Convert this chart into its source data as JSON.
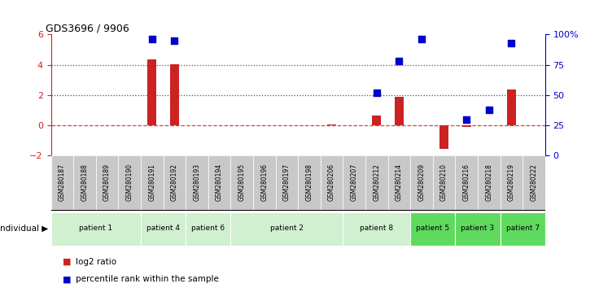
{
  "title": "GDS3696 / 9906",
  "samples": [
    "GSM280187",
    "GSM280188",
    "GSM280189",
    "GSM280190",
    "GSM280191",
    "GSM280192",
    "GSM280193",
    "GSM280194",
    "GSM280195",
    "GSM280196",
    "GSM280197",
    "GSM280198",
    "GSM280206",
    "GSM280207",
    "GSM280212",
    "GSM280214",
    "GSM280209",
    "GSM280210",
    "GSM280216",
    "GSM280218",
    "GSM280219",
    "GSM280222"
  ],
  "log2_ratio": [
    0,
    0,
    0,
    0,
    4.35,
    4.05,
    0,
    0,
    0,
    0,
    0,
    0,
    0.08,
    0,
    0.65,
    1.9,
    0,
    -1.55,
    -0.1,
    0,
    2.35,
    0
  ],
  "pct_rank": [
    null,
    null,
    null,
    null,
    96,
    95,
    null,
    null,
    null,
    null,
    null,
    null,
    null,
    null,
    52,
    78,
    96,
    null,
    30,
    38,
    93,
    null
  ],
  "patients": [
    {
      "label": "patient 1",
      "start": 0,
      "end": 4,
      "color": "#d0f0d0"
    },
    {
      "label": "patient 4",
      "start": 4,
      "end": 6,
      "color": "#d0f0d0"
    },
    {
      "label": "patient 6",
      "start": 6,
      "end": 8,
      "color": "#d0f0d0"
    },
    {
      "label": "patient 2",
      "start": 8,
      "end": 13,
      "color": "#d0f0d0"
    },
    {
      "label": "patient 8",
      "start": 13,
      "end": 16,
      "color": "#d0f0d0"
    },
    {
      "label": "patient 5",
      "start": 16,
      "end": 18,
      "color": "#5edb5e"
    },
    {
      "label": "patient 3",
      "start": 18,
      "end": 20,
      "color": "#5edb5e"
    },
    {
      "label": "patient 7",
      "start": 20,
      "end": 22,
      "color": "#5edb5e"
    }
  ],
  "ylim_left": [
    -2,
    6
  ],
  "ylim_right": [
    0,
    100
  ],
  "yticks_left": [
    -2,
    0,
    2,
    4,
    6
  ],
  "yticks_right": [
    0,
    25,
    50,
    75,
    100
  ],
  "ytick_labels_right": [
    "0",
    "25",
    "50",
    "75",
    "100%"
  ],
  "hline_y": [
    0,
    2,
    4
  ],
  "hline_styles": [
    "--",
    ":",
    ":"
  ],
  "hline_colors": [
    "#cc2222",
    "#333333",
    "#333333"
  ],
  "bar_color": "#cc2222",
  "dot_color": "#0000cc",
  "legend_items": [
    {
      "color": "#cc2222",
      "label": "log2 ratio"
    },
    {
      "color": "#0000cc",
      "label": "percentile rank within the sample"
    }
  ],
  "individual_label": "individual",
  "bar_width": 0.4,
  "dot_size": 35,
  "sample_box_color": "#c8c8c8",
  "background_plot": "#ffffff",
  "background_fig": "#ffffff"
}
